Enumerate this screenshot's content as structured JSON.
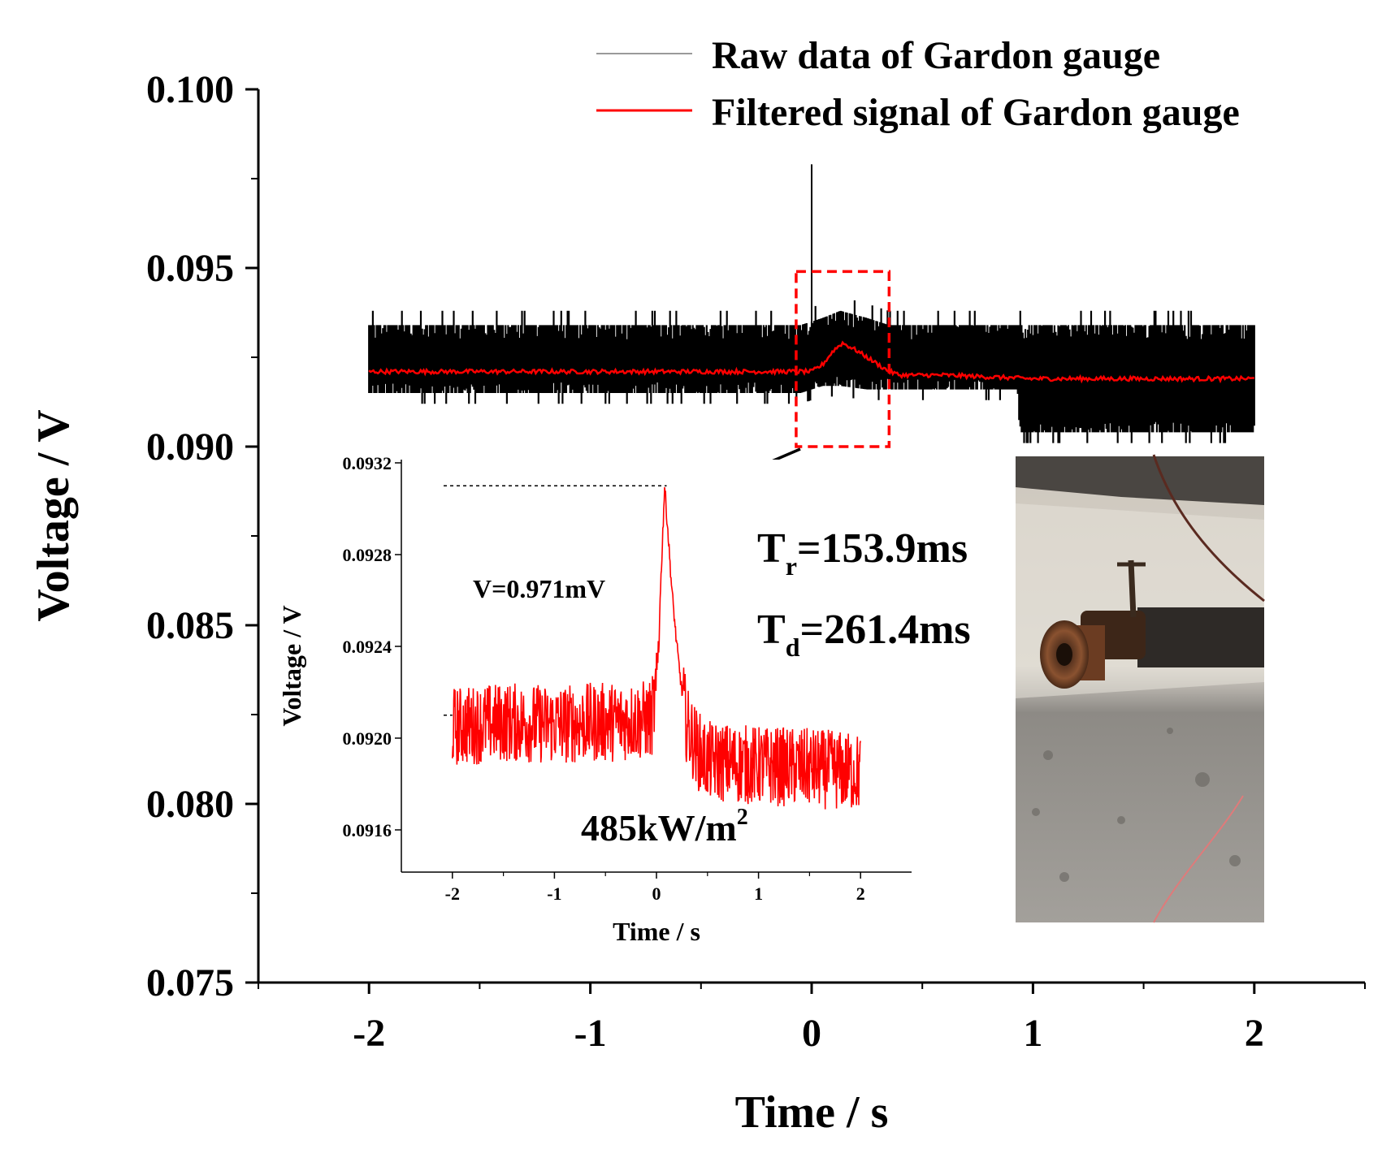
{
  "chart_data": [
    {
      "type": "line",
      "xlabel": "Time / s",
      "ylabel": "Voltage / V",
      "xlim": [
        -2.5,
        2.5
      ],
      "ylim": [
        0.075,
        0.1
      ],
      "x_ticks": [
        -2,
        -1,
        0,
        1,
        2
      ],
      "x_tick_labels": [
        "-2",
        "-1",
        "0",
        "1",
        "2"
      ],
      "y_ticks": [
        0.075,
        0.08,
        0.085,
        0.09,
        0.095,
        0.1
      ],
      "y_tick_labels": [
        "0.075",
        "0.080",
        "0.085",
        "0.090",
        "0.095",
        "0.100"
      ],
      "legend_position": "top-right",
      "series": [
        {
          "name": "Raw data of Gardon gauge",
          "color": "#000000",
          "band": {
            "x": [
              -2.0,
              -0.05,
              0.05,
              0.13,
              0.25,
              0.35,
              0.93,
              0.94,
              2.0
            ],
            "low": [
              0.0915,
              0.0915,
              0.0917,
              0.0917,
              0.0916,
              0.0916,
              0.0916,
              0.0904,
              0.0904
            ],
            "high": [
              0.0934,
              0.0934,
              0.0936,
              0.0938,
              0.0936,
              0.0934,
              0.0934,
              0.0934,
              0.0934
            ]
          },
          "spike": {
            "x": 0.0,
            "y": 0.0979
          }
        },
        {
          "name": "Filtered signal of Gardon gauge",
          "color": "#ff0000",
          "x": [
            -2.0,
            -1.5,
            -1.0,
            -0.5,
            -0.05,
            0.0,
            0.05,
            0.1,
            0.14,
            0.2,
            0.25,
            0.3,
            0.35,
            0.4,
            0.6,
            1.0,
            1.5,
            2.0
          ],
          "y": [
            0.0921,
            0.0921,
            0.0921,
            0.0921,
            0.0921,
            0.0921,
            0.0923,
            0.0927,
            0.0929,
            0.0927,
            0.0925,
            0.0923,
            0.0921,
            0.092,
            0.092,
            0.0919,
            0.0919,
            0.0919
          ]
        }
      ],
      "highlight_box": {
        "x": [
          -0.07,
          0.35
        ],
        "y": [
          0.09,
          0.0949
        ],
        "color": "#ff0000",
        "style": "dashed"
      }
    },
    {
      "type": "line",
      "xlabel": "Time / s",
      "ylabel": "Voltage / V",
      "xlim": [
        -2.5,
        2.5
      ],
      "ylim": [
        0.0913,
        0.0932
      ],
      "x_ticks": [
        -2,
        -1,
        0,
        1,
        2
      ],
      "x_tick_labels": [
        "-2",
        "-1",
        "0",
        "1",
        "2"
      ],
      "y_ticks": [
        0.0916,
        0.092,
        0.0924,
        0.0928,
        0.0932
      ],
      "y_tick_labels": [
        "0.0916",
        "0.0920",
        "0.0924",
        "0.0928",
        "0.0932"
      ],
      "series": [
        {
          "color": "#ff0000",
          "x": [
            -2.0,
            -1.5,
            -1.0,
            -0.5,
            -0.05,
            0.0,
            0.08,
            0.12,
            0.15,
            0.2,
            0.25,
            0.3,
            0.4,
            0.5,
            1.0,
            1.5,
            2.0
          ],
          "y": [
            0.09205,
            0.09207,
            0.09206,
            0.09207,
            0.09208,
            0.0922,
            0.0931,
            0.09285,
            0.09265,
            0.0924,
            0.0922,
            0.09205,
            0.09195,
            0.0919,
            0.09188,
            0.09187,
            0.09185
          ]
        }
      ],
      "reference_levels": [
        0.0931,
        0.0921
      ],
      "annotations": {
        "delta_v": "V=0.971mV",
        "heat_flux_value": "485kW/m",
        "heat_flux_exponent": "2"
      }
    }
  ],
  "annotations": {
    "rise_time_symbol": "T",
    "rise_time_subscript": "r",
    "rise_time_value": "=153.9ms",
    "decay_time_symbol": "T",
    "decay_time_subscript": "d",
    "decay_time_value": "=261.4ms"
  },
  "photo": {
    "description_icon": "gardon-gauge-photo-icon"
  }
}
